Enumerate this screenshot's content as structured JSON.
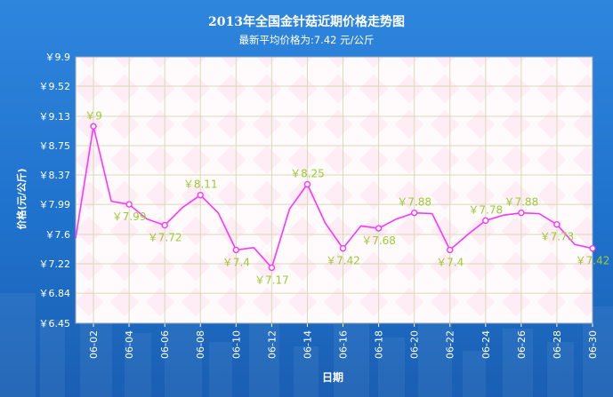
{
  "page": {
    "title": "2013年全国金针菇近期价格走势图",
    "subtitle": "最新平均价格为:7.42 元/公斤"
  },
  "chart_data": {
    "type": "line",
    "title": "2013年全国金针菇近期价格走势图",
    "subtitle": "最新平均价格为:7.42 元/公斤",
    "xlabel": "日期",
    "ylabel": "价格(元/公斤)",
    "ylim": [
      6.45,
      9.9
    ],
    "yticks": [
      "￥9.9",
      "￥9.52",
      "￥9.13",
      "￥8.75",
      "￥8.37",
      "￥7.99",
      "￥7.6",
      "￥7.22",
      "￥6.84",
      "￥6.45"
    ],
    "ytick_values": [
      9.9,
      9.52,
      9.13,
      8.75,
      8.37,
      7.99,
      7.6,
      7.22,
      6.84,
      6.45
    ],
    "xticks": [
      "06-02",
      "06-04",
      "06-06",
      "06-08",
      "06-10",
      "06-12",
      "06-14",
      "06-16",
      "06-18",
      "06-20",
      "06-22",
      "06-24",
      "06-26",
      "06-28",
      "06-30"
    ],
    "x": [
      "06-01",
      "06-02",
      "06-03",
      "06-04",
      "06-05",
      "06-06",
      "06-07",
      "06-08",
      "06-09",
      "06-10",
      "06-11",
      "06-12",
      "06-13",
      "06-14",
      "06-15",
      "06-16",
      "06-17",
      "06-18",
      "06-19",
      "06-20",
      "06-21",
      "06-22",
      "06-23",
      "06-24",
      "06-25",
      "06-26",
      "06-27",
      "06-28",
      "06-29",
      "06-30"
    ],
    "series": [
      {
        "values": [
          7.55,
          9.0,
          8.03,
          7.99,
          7.8,
          7.72,
          7.95,
          8.11,
          7.88,
          7.4,
          7.43,
          7.17,
          7.93,
          8.25,
          7.75,
          7.42,
          7.71,
          7.68,
          7.8,
          7.88,
          7.87,
          7.4,
          7.6,
          7.78,
          7.85,
          7.88,
          7.87,
          7.73,
          7.47,
          7.42
        ],
        "color": "#ff33ff"
      }
    ],
    "data_labels": [
      {
        "x": "06-02",
        "text": "￥9",
        "pos": "above"
      },
      {
        "x": "06-04",
        "text": "￥7.99",
        "pos": "below"
      },
      {
        "x": "06-06",
        "text": "￥7.72",
        "pos": "below"
      },
      {
        "x": "06-08",
        "text": "￥8.11",
        "pos": "above"
      },
      {
        "x": "06-10",
        "text": "￥7.4",
        "pos": "below"
      },
      {
        "x": "06-12",
        "text": "￥7.17",
        "pos": "below"
      },
      {
        "x": "06-14",
        "text": "￥8.25",
        "pos": "above"
      },
      {
        "x": "06-16",
        "text": "￥7.42",
        "pos": "below"
      },
      {
        "x": "06-18",
        "text": "￥7.68",
        "pos": "below"
      },
      {
        "x": "06-20",
        "text": "￥7.88",
        "pos": "above"
      },
      {
        "x": "06-22",
        "text": "￥7.4",
        "pos": "below"
      },
      {
        "x": "06-24",
        "text": "￥7.78",
        "pos": "above"
      },
      {
        "x": "06-26",
        "text": "￥7.88",
        "pos": "above"
      },
      {
        "x": "06-28",
        "text": "￥7.73",
        "pos": "below"
      },
      {
        "x": "06-30",
        "text": "￥7.42",
        "pos": "below"
      }
    ],
    "grid": true,
    "colors": {
      "line": "#ff33ff",
      "marker_fill": "#ffffff",
      "data_label": "#99cc33",
      "plot_background": "#fffafc",
      "grid": "#d9d9b8",
      "page_background": "#2a7fd8"
    }
  }
}
